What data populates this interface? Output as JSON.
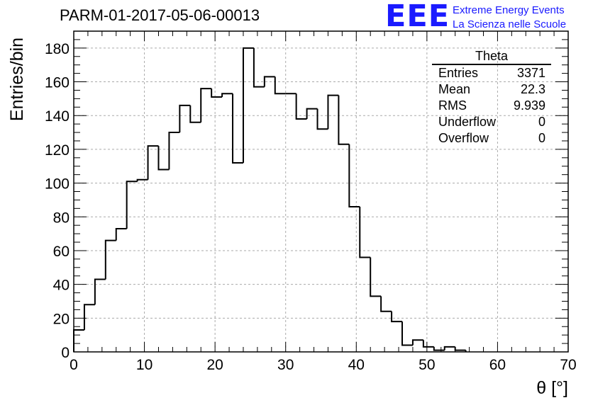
{
  "page": {
    "title": "PARM-01-2017-05-06-00013",
    "logo": {
      "mark": "EEE",
      "line1": "Extreme Energy Events",
      "line2": "La Scienza nelle Scuole",
      "color": "#1a1aff"
    }
  },
  "stats": {
    "title": "Theta",
    "rows": [
      {
        "label": "Entries",
        "value": "3371"
      },
      {
        "label": "Mean",
        "value": "22.3"
      },
      {
        "label": "RMS",
        "value": "9.939"
      },
      {
        "label": "Underflow",
        "value": "0"
      },
      {
        "label": "Overflow",
        "value": "0"
      }
    ]
  },
  "chart_data": {
    "type": "bar",
    "style": "step-histogram",
    "xlabel": "θ [°]",
    "ylabel": "Entries/bin",
    "xlim": [
      0,
      70
    ],
    "ylim": [
      0,
      190
    ],
    "grid": true,
    "x_ticks": [
      0,
      10,
      20,
      30,
      40,
      50,
      60,
      70
    ],
    "y_ticks": [
      0,
      20,
      40,
      60,
      80,
      100,
      120,
      140,
      160,
      180
    ],
    "bin_width": 1.5,
    "bin_edges_start": 0,
    "values": [
      13,
      28,
      43,
      66,
      73,
      101,
      102,
      122,
      108,
      130,
      146,
      136,
      156,
      151,
      153,
      112,
      180,
      157,
      163,
      153,
      153,
      138,
      144,
      132,
      152,
      123,
      86,
      56,
      33,
      24,
      18,
      4,
      7,
      3,
      1,
      3,
      1
    ]
  }
}
